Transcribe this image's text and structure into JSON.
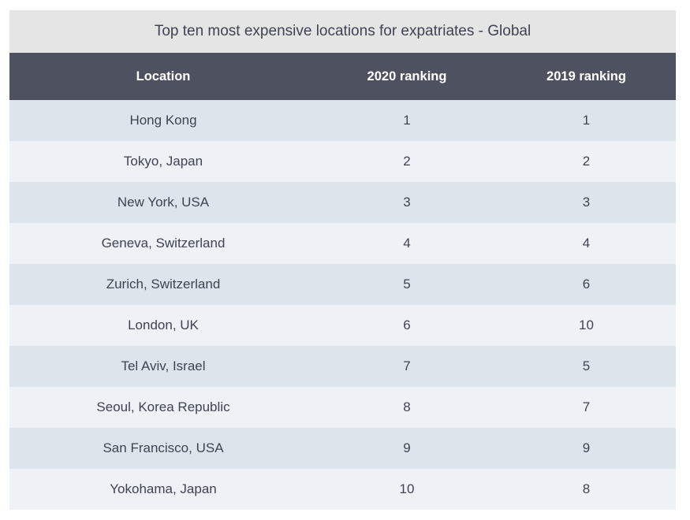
{
  "table": {
    "title": "Top ten most expensive locations for expatriates - Global",
    "headers": {
      "location": "Location",
      "rank_2020": "2020 ranking",
      "rank_2019": "2019 ranking"
    },
    "rows": [
      {
        "location": "Hong Kong",
        "rank_2020": "1",
        "rank_2019": "1"
      },
      {
        "location": "Tokyo, Japan",
        "rank_2020": "2",
        "rank_2019": "2"
      },
      {
        "location": "New York, USA",
        "rank_2020": "3",
        "rank_2019": "3"
      },
      {
        "location": "Geneva, Switzerland",
        "rank_2020": "4",
        "rank_2019": "4"
      },
      {
        "location": "Zurich, Switzerland",
        "rank_2020": "5",
        "rank_2019": "6"
      },
      {
        "location": "London, UK",
        "rank_2020": "6",
        "rank_2019": "10"
      },
      {
        "location": "Tel Aviv, Israel",
        "rank_2020": "7",
        "rank_2019": "5"
      },
      {
        "location": "Seoul, Korea Republic",
        "rank_2020": "8",
        "rank_2019": "7"
      },
      {
        "location": "San Francisco, USA",
        "rank_2020": "9",
        "rank_2019": "9"
      },
      {
        "location": "Yokohama, Japan",
        "rank_2020": "10",
        "rank_2019": "8"
      }
    ]
  },
  "colors": {
    "title_background": "#e5e5e5",
    "header_background": "#4e5260",
    "row_odd": "#dde5ec",
    "row_even": "#eef2f6",
    "text": "#3f4352"
  }
}
